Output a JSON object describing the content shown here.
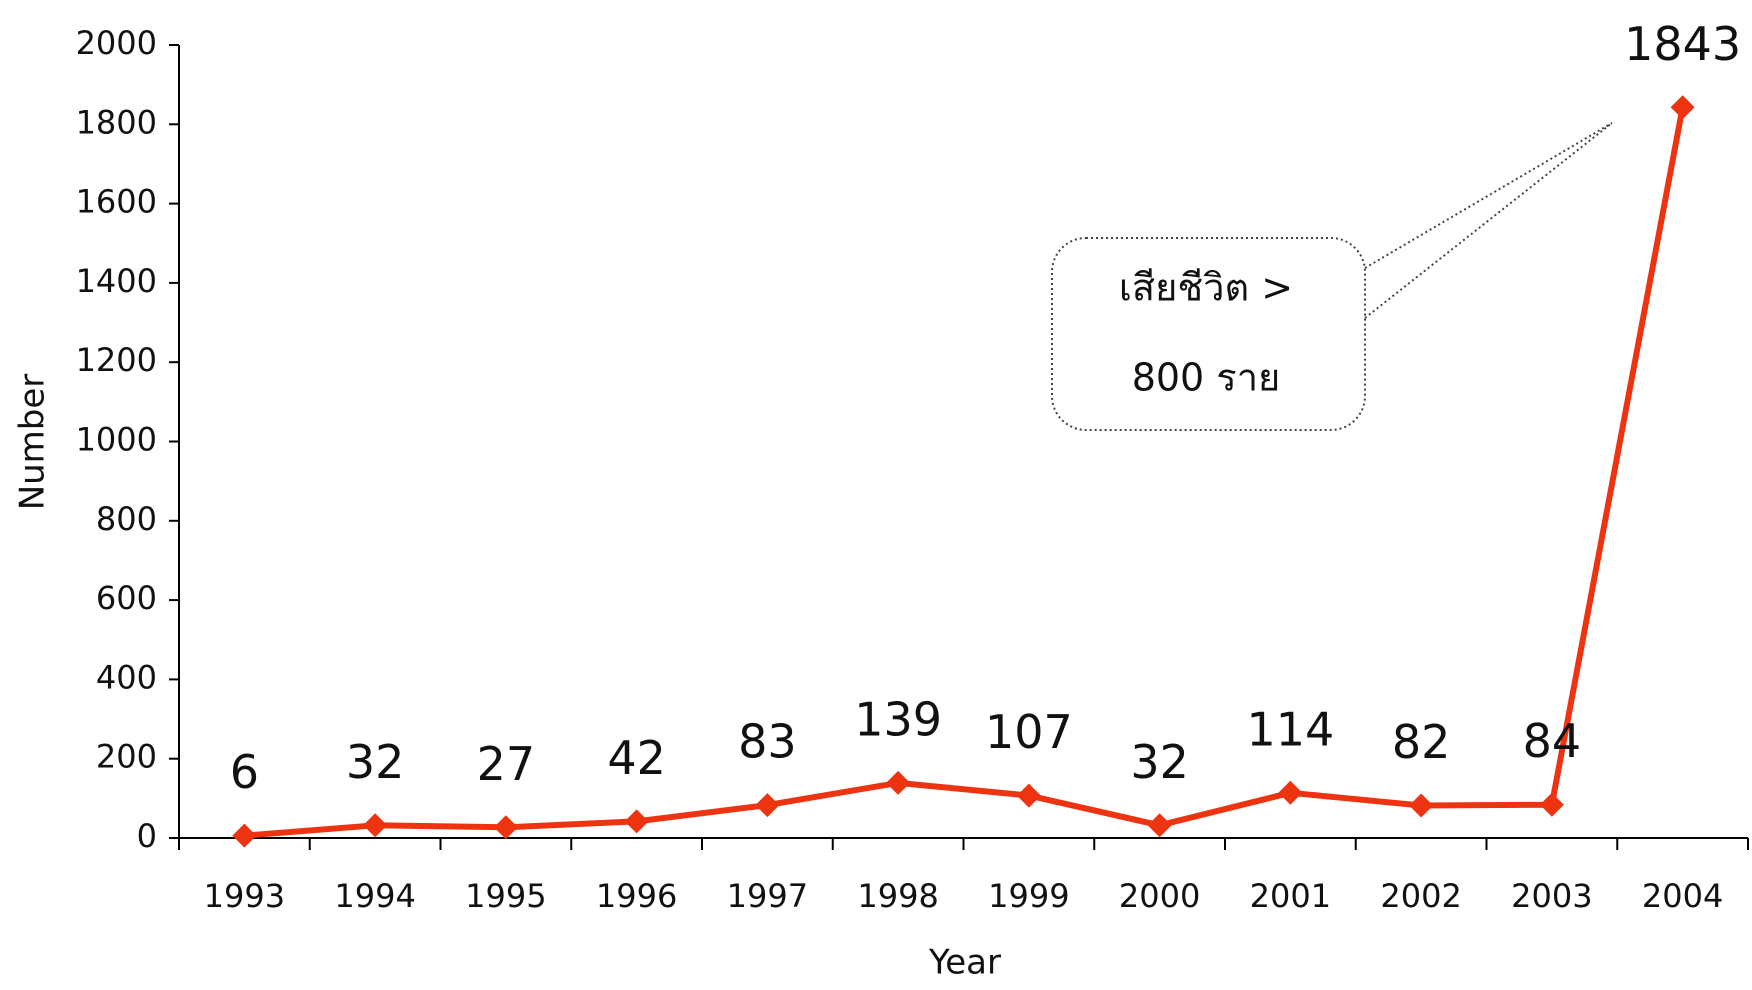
{
  "chart_data": {
    "type": "line",
    "categories": [
      "1993",
      "1994",
      "1995",
      "1996",
      "1997",
      "1998",
      "1999",
      "2000",
      "2001",
      "2002",
      "2003",
      "2004"
    ],
    "values": [
      6,
      32,
      27,
      42,
      83,
      139,
      107,
      32,
      114,
      82,
      84,
      1843
    ],
    "color": "#ee3311",
    "ylim": [
      0,
      2000
    ],
    "yticks": [
      0,
      200,
      400,
      600,
      800,
      1000,
      1200,
      1400,
      1600,
      1800,
      2000
    ],
    "xlabel": "Year",
    "ylabel": "Number",
    "data_labels": true,
    "annotation": [
      "เสียชีวิต >",
      "800 ราย"
    ]
  }
}
